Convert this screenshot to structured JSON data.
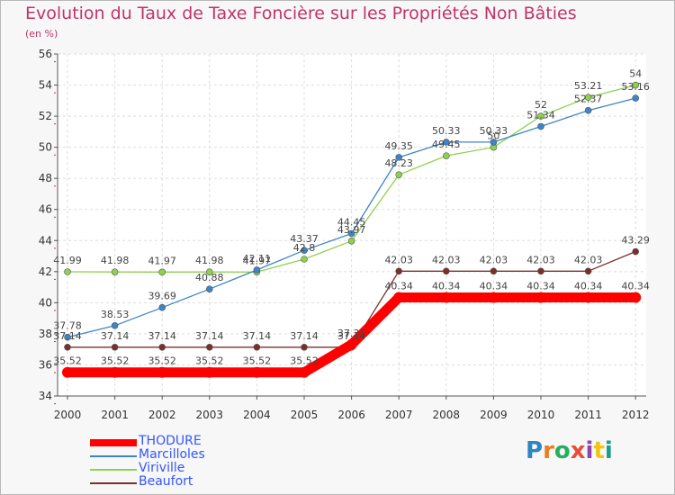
{
  "header": {
    "title": "Evolution du Taux de Taxe Foncière sur les Propriétés Non Bâties",
    "unit": "(en %)"
  },
  "logo": {
    "text": "Proxiti",
    "colors": [
      "#2e86c1",
      "#e67e22",
      "#27ae60",
      "#e74c3c",
      "#8e44ad",
      "#f1c40f",
      "#16a085"
    ]
  },
  "chart_data": {
    "type": "line",
    "title": "Evolution du Taux de Taxe Foncière sur les Propriétés Non Bâties",
    "ylabel": "(en %)",
    "xlabel": "",
    "x": [
      "2000",
      "2001",
      "2002",
      "2003",
      "2004",
      "2005",
      "2006",
      "2007",
      "2008",
      "2009",
      "2010",
      "2011",
      "2012"
    ],
    "ylim": [
      34,
      56
    ],
    "yticks": [
      "34",
      "36",
      "38",
      "40",
      "42",
      "44",
      "46",
      "48",
      "50",
      "52",
      "54",
      "56"
    ],
    "grid": true,
    "legend_position": "bottom-left",
    "series": [
      {
        "name": "THODURE",
        "color": "#ff0000",
        "values": [
          35.52,
          35.52,
          35.52,
          35.52,
          35.52,
          35.52,
          37.31,
          40.34,
          40.34,
          40.34,
          40.34,
          40.34,
          40.34
        ],
        "labels": [
          "35.52",
          "35.52",
          "35.52",
          "35.52",
          "35.52",
          "35.52",
          "37.31",
          "40.34",
          "40.34",
          "40.34",
          "40.34",
          "40.34",
          "40.34"
        ]
      },
      {
        "name": "Marcilloles",
        "color": "#3d85c6",
        "values": [
          37.78,
          38.53,
          39.69,
          40.88,
          42.11,
          43.37,
          44.45,
          49.35,
          50.33,
          50.33,
          51.34,
          52.37,
          53.16
        ],
        "labels": [
          "37.78",
          "38.53",
          "39.69",
          "40.88",
          "42.11",
          "43.37",
          "44.45",
          "49.35",
          "50.33",
          "50.33",
          "51.34",
          "52.37",
          "53.16"
        ]
      },
      {
        "name": "Viriville",
        "color": "#8fd14f",
        "values": [
          41.99,
          41.98,
          41.97,
          41.98,
          41.97,
          42.8,
          43.97,
          48.23,
          49.45,
          50.0,
          52.0,
          53.21,
          54.0
        ],
        "labels": [
          "41.99",
          "41.98",
          "41.97",
          "41.98",
          "41.97",
          "42.8",
          "43.97",
          "48.23",
          "49.45",
          "50",
          "52",
          "53.21",
          "54"
        ]
      },
      {
        "name": "Beaufort",
        "color": "#7b2e2e",
        "values": [
          37.14,
          37.14,
          37.14,
          37.14,
          37.14,
          37.14,
          37.14,
          42.03,
          42.03,
          42.03,
          42.03,
          42.03,
          43.29
        ],
        "labels": [
          "37.14",
          "37.14",
          "37.14",
          "37.14",
          "37.14",
          "37.14",
          "37.14",
          "42.03",
          "42.03",
          "42.03",
          "42.03",
          "42.03",
          "43.29"
        ]
      }
    ]
  }
}
